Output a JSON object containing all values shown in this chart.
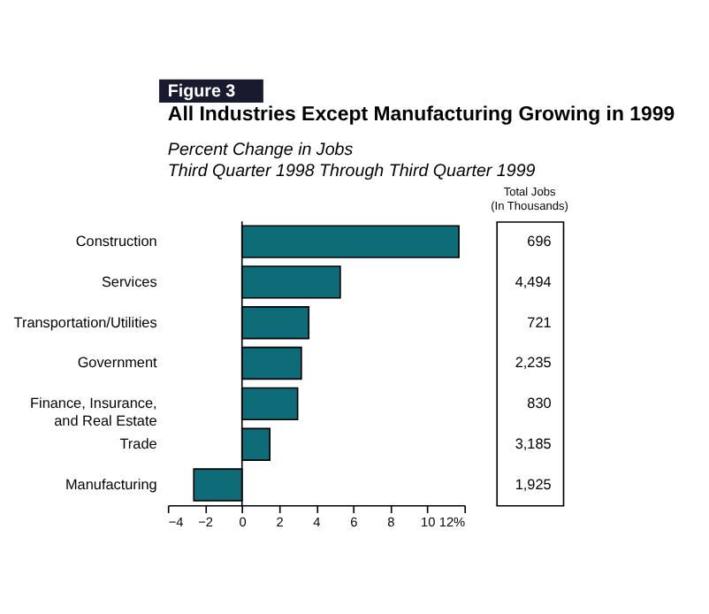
{
  "chart_data": {
    "type": "bar",
    "orientation": "horizontal",
    "title": "All Industries Except Manufacturing Growing in 1999",
    "subtitle": "Percent Change in Jobs\nThird Quarter 1998 Through Third Quarter 1999",
    "categories": [
      "Construction",
      "Services",
      "Transportation/Utilities",
      "Government",
      "Finance, Insurance,\nand Real Estate",
      "Trade",
      "Manufacturing"
    ],
    "values": [
      11.7,
      5.3,
      3.6,
      3.2,
      3.0,
      1.5,
      -2.6
    ],
    "color": "#0e6b78",
    "ref_lines": [
      {
        "axis": "x",
        "value": 0,
        "color": "#000000"
      }
    ],
    "xlim": [
      -4,
      12
    ],
    "xticks": [
      -4,
      -2,
      0,
      2,
      4,
      6,
      8,
      10,
      {
        "value": 12,
        "label": "12%"
      }
    ],
    "annotations": [
      "Figure 3",
      "Total Jobs",
      "(In Thousands)",
      "696",
      "4,494",
      "721",
      "2,235",
      "830",
      "3,185",
      "1,925"
    ]
  }
}
